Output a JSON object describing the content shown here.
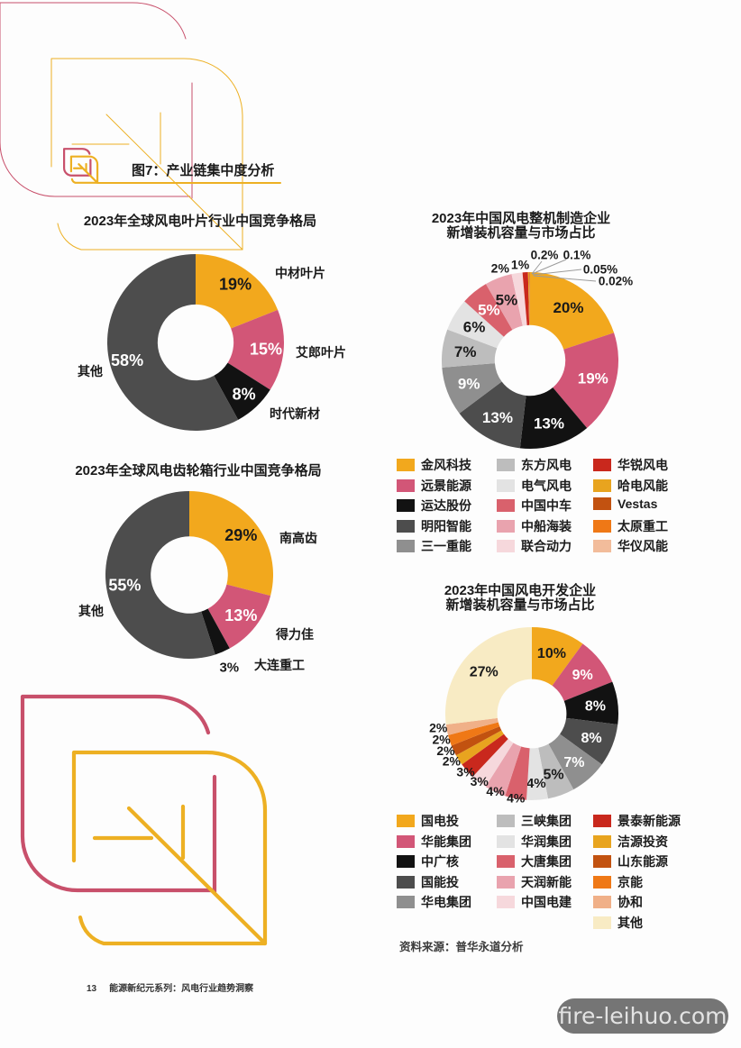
{
  "page": {
    "background": "#FDFDFD",
    "figure_label": "图7：产业链集中度分析",
    "accent_yellow": "#EDB023",
    "accent_pink": "#C8506B",
    "source_label": "资料来源：普华永道分析",
    "footer_page_number": "13",
    "footer_text": "能源新纪元系列：风电行业趋势洞察",
    "watermark": "fire-leihuo.com"
  },
  "chart_data": [
    {
      "id": "blade",
      "type": "donut",
      "title": "2023年全球风电叶片行业中国竞争格局",
      "legend": false,
      "name_labels_on_chart": true,
      "segments": [
        {
          "name": "中材叶片",
          "value": 19,
          "label": "19%",
          "color": "#F2A81D"
        },
        {
          "name": "艾郎叶片",
          "value": 15,
          "label": "15%",
          "color": "#D25677"
        },
        {
          "name": "时代新材",
          "value": 8,
          "label": "8%",
          "color": "#121212"
        },
        {
          "name": "其他",
          "value": 58,
          "label": "58%",
          "color": "#4D4D4D"
        }
      ]
    },
    {
      "id": "oem",
      "type": "donut",
      "title_lines": [
        "2023年中国风电整机制造企业",
        "新增装机容量与市场占比"
      ],
      "legend": true,
      "name_labels_on_chart": false,
      "segments": [
        {
          "name": "金风科技",
          "value": 20,
          "label": "20%",
          "color": "#F2A81D"
        },
        {
          "name": "远景能源",
          "value": 19,
          "label": "19%",
          "color": "#D25677"
        },
        {
          "name": "运达股份",
          "value": 13,
          "label": "13%",
          "color": "#121212"
        },
        {
          "name": "明阳智能",
          "value": 13,
          "label": "13%",
          "color": "#4D4D4D"
        },
        {
          "name": "三一重能",
          "value": 9,
          "label": "9%",
          "color": "#8F8F8F"
        },
        {
          "name": "东方风电",
          "value": 7,
          "label": "7%",
          "color": "#BDBDBD"
        },
        {
          "name": "电气风电",
          "value": 6,
          "label": "6%",
          "color": "#E3E3E3"
        },
        {
          "name": "中国中车",
          "value": 5,
          "label": "5%",
          "color": "#D9616C"
        },
        {
          "name": "中船海装",
          "value": 5,
          "label": "5%",
          "color": "#E9A3AE"
        },
        {
          "name": "联合动力",
          "value": 2,
          "label": "2%",
          "color": "#F6D8DC"
        },
        {
          "name": "华锐风电",
          "value": 1,
          "label": "1%",
          "color": "#C9281D"
        },
        {
          "name": "哈电风能",
          "value": 0.2,
          "label": "0.2%",
          "color": "#E8A41F"
        },
        {
          "name": "Vestas",
          "value": 0.1,
          "label": "0.1%",
          "color": "#C25210"
        },
        {
          "name": "太原重工",
          "value": 0.05,
          "label": "0.05%",
          "color": "#EF7816"
        },
        {
          "name": "华仪风能",
          "value": 0.02,
          "label": "0.02%",
          "color": "#F2BC9B"
        }
      ]
    },
    {
      "id": "gearbox",
      "type": "donut",
      "title": "2023年全球风电齿轮箱行业中国竞争格局",
      "legend": false,
      "name_labels_on_chart": true,
      "segments": [
        {
          "name": "南高齿",
          "value": 29,
          "label": "29%",
          "color": "#F2A81D"
        },
        {
          "name": "得力佳",
          "value": 13,
          "label": "13%",
          "color": "#D25677"
        },
        {
          "name": "大连重工",
          "value": 3,
          "label": "3%",
          "color": "#121212"
        },
        {
          "name": "其他",
          "value": 55,
          "label": "55%",
          "color": "#4D4D4D"
        }
      ]
    },
    {
      "id": "developers",
      "type": "donut",
      "title_lines": [
        "2023年中国风电开发企业",
        "新增装机容量与市场占比"
      ],
      "legend": true,
      "name_labels_on_chart": false,
      "segments": [
        {
          "name": "国电投",
          "value": 10,
          "label": "10%",
          "color": "#F2A81D"
        },
        {
          "name": "华能集团",
          "value": 9,
          "label": "9%",
          "color": "#D25677"
        },
        {
          "name": "中广核",
          "value": 8,
          "label": "8%",
          "color": "#121212"
        },
        {
          "name": "国能投",
          "value": 8,
          "label": "8%",
          "color": "#4D4D4D"
        },
        {
          "name": "华电集团",
          "value": 7,
          "label": "7%",
          "color": "#8F8F8F"
        },
        {
          "name": "三峡集团",
          "value": 5,
          "label": "5%",
          "color": "#BDBDBD"
        },
        {
          "name": "华润集团",
          "value": 4,
          "label": "4%",
          "color": "#E3E3E3"
        },
        {
          "name": "大唐集团",
          "value": 4,
          "label": "4%",
          "color": "#D9616C"
        },
        {
          "name": "天润新能",
          "value": 4,
          "label": "4%",
          "color": "#E9A3AE"
        },
        {
          "name": "中国电建",
          "value": 3,
          "label": "3%",
          "color": "#F6D8DC"
        },
        {
          "name": "景泰新能源",
          "value": 3,
          "label": "3%",
          "color": "#C9281D"
        },
        {
          "name": "洁源投资",
          "value": 2,
          "label": "2%",
          "color": "#E8A41F"
        },
        {
          "name": "山东能源",
          "value": 2,
          "label": "2%",
          "color": "#C25210"
        },
        {
          "name": "京能",
          "value": 2,
          "label": "2%",
          "color": "#EF7816"
        },
        {
          "name": "协和",
          "value": 2,
          "label": "2%",
          "color": "#F0B088"
        },
        {
          "name": "其他",
          "value": 27,
          "label": "27%",
          "color": "#F8EBC4"
        }
      ]
    }
  ]
}
